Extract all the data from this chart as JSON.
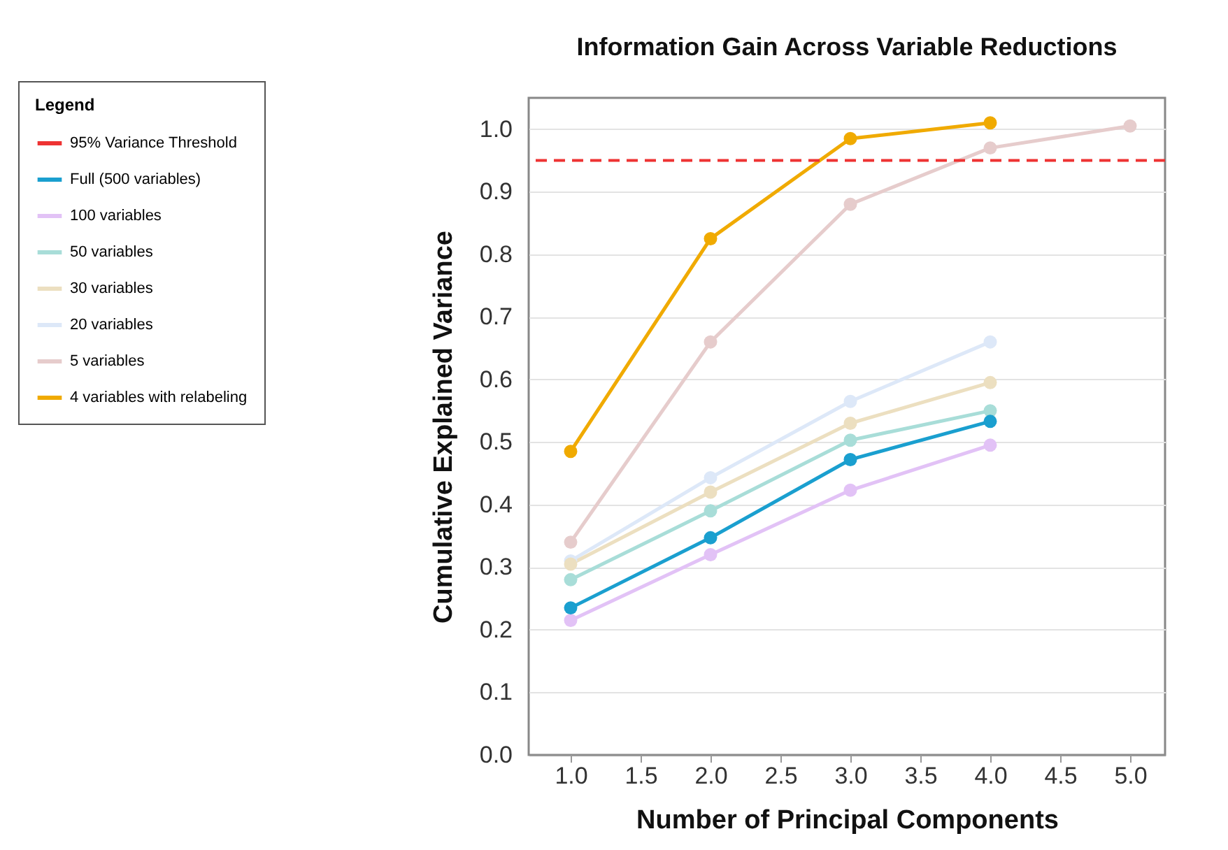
{
  "chart_data": {
    "type": "line",
    "title": "Information Gain Across Variable Reductions",
    "xlabel": "Number of Principal Components",
    "ylabel": "Cumulative Explained Variance",
    "legend_title": "Legend",
    "legend": "left",
    "grid": "y",
    "marker": "circle",
    "line_style": "solid",
    "xlim": [
      0.7,
      5.25
    ],
    "xticks": [
      {
        "value": 1,
        "label": "1.0"
      },
      {
        "value": 1.5,
        "label": "1.5"
      },
      {
        "value": 2,
        "label": "2.0"
      },
      {
        "value": 2.5,
        "label": "2.5"
      },
      {
        "value": 3,
        "label": "3.0"
      },
      {
        "value": 3.5,
        "label": "3.5"
      },
      {
        "value": 4,
        "label": "4.0"
      },
      {
        "value": 4.5,
        "label": "4.5"
      },
      {
        "value": 5,
        "label": "5.0"
      }
    ],
    "ylim": [
      0,
      1.05
    ],
    "yticks": [
      {
        "value": 0,
        "label": "0.0"
      },
      {
        "value": 0.1,
        "label": "0.1"
      },
      {
        "value": 0.2,
        "label": "0.2"
      },
      {
        "value": 0.3,
        "label": "0.3"
      },
      {
        "value": 0.4,
        "label": "0.4"
      },
      {
        "value": 0.5,
        "label": "0.5"
      },
      {
        "value": 0.6,
        "label": "0.6"
      },
      {
        "value": 0.7,
        "label": "0.7"
      },
      {
        "value": 0.8,
        "label": "0.8"
      },
      {
        "value": 0.9,
        "label": "0.9"
      },
      {
        "value": 1,
        "label": "1.0"
      }
    ],
    "ref_lines": [
      {
        "axis": "y",
        "value": 0.95,
        "label": "95% Variance Threshold",
        "color": "#ee3333",
        "line_style": "dashed"
      }
    ],
    "x": [
      1,
      2,
      3,
      4
    ],
    "series": [
      {
        "name": "Full (500 variables)",
        "color": "#1a9fcf",
        "values": [
          0.235,
          0.347,
          0.472,
          0.533
        ]
      },
      {
        "name": "100 variables",
        "color": "#e2c2f6",
        "values": [
          0.215,
          0.32,
          0.423,
          0.495
        ]
      },
      {
        "name": "50 variables",
        "color": "#a8ddd8",
        "values": [
          0.28,
          0.39,
          0.503,
          0.55
        ]
      },
      {
        "name": "30 variables",
        "color": "#ecdfc0",
        "values": [
          0.305,
          0.42,
          0.53,
          0.595
        ]
      },
      {
        "name": "20 variables",
        "color": "#dde8f8",
        "values": [
          0.31,
          0.443,
          0.565,
          0.66
        ]
      },
      {
        "name": "5 variables",
        "color": "#e6cccc",
        "x": [
          1,
          2,
          3,
          4,
          5
        ],
        "values": [
          0.34,
          0.66,
          0.88,
          0.97,
          1.005
        ]
      },
      {
        "name": "4 variables with relabeling",
        "color": "#f0aa00",
        "values": [
          0.485,
          0.825,
          0.985,
          1.01
        ]
      }
    ]
  }
}
